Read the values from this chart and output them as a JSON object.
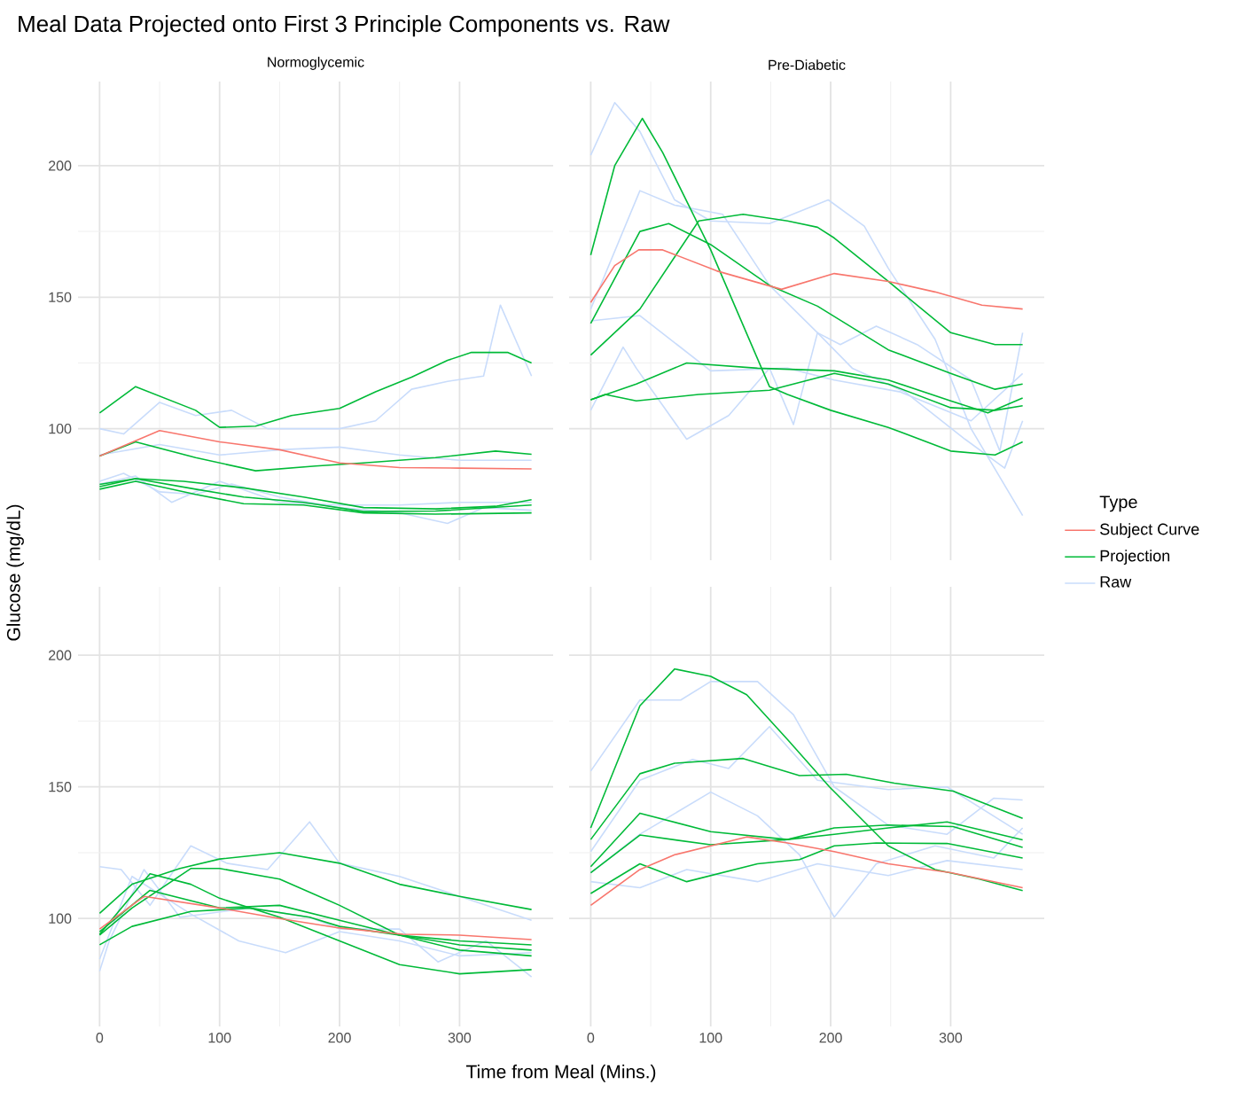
{
  "chart_data": [
    {
      "type": "line",
      "title": "Meal Data Projected onto First 3 Principle Components vs. Raw",
      "subtitle": "Normoglycemic",
      "ylabel": "Glucose (mg/dL)",
      "xlim": [
        -18,
        378
      ],
      "xticks": [
        0,
        100,
        200,
        300
      ],
      "ylim": [
        50,
        232
      ],
      "yticks": [
        100,
        150,
        200
      ],
      "grid": true,
      "tick_labels": "y",
      "series": [
        {
          "color": "#f8766d",
          "x": [
            0,
            50,
            100,
            150,
            200,
            250,
            300,
            360
          ],
          "values": [
            89.6,
            99.3,
            95,
            92,
            87,
            85.2,
            85,
            84.7
          ]
        },
        {
          "color": "#00ba38",
          "x": [
            0,
            30,
            80,
            100,
            130,
            160,
            200,
            230,
            260,
            290,
            310,
            340,
            360
          ],
          "values": [
            106,
            116,
            107,
            100.5,
            101,
            105,
            107.7,
            114,
            119.6,
            126,
            129,
            129,
            125
          ]
        },
        {
          "color": "#00ba38",
          "x": [
            0,
            30,
            80,
            130,
            180,
            220,
            280,
            330,
            360
          ],
          "values": [
            89.6,
            95,
            89,
            84,
            85.8,
            87,
            89,
            91.5,
            90.3
          ]
        },
        {
          "color": "#00ba38",
          "x": [
            0,
            30,
            70,
            120,
            170,
            220,
            280,
            330,
            360
          ],
          "values": [
            78.8,
            81,
            80,
            77.5,
            74,
            70,
            69.5,
            70.5,
            73
          ]
        },
        {
          "color": "#00ba38",
          "x": [
            0,
            30,
            80,
            120,
            170,
            220,
            280,
            360
          ],
          "values": [
            78,
            81,
            77,
            74,
            72,
            68.5,
            68.7,
            71
          ]
        },
        {
          "color": "#00ba38",
          "x": [
            0,
            30,
            80,
            120,
            170,
            220,
            280,
            360
          ],
          "values": [
            77,
            80,
            75,
            71.5,
            71,
            68,
            67.5,
            68
          ]
        },
        {
          "color": "#c9dcfb",
          "x": [
            0,
            20,
            50,
            80,
            110,
            140,
            200,
            230,
            260,
            290,
            320,
            334,
            360
          ],
          "values": [
            100,
            98,
            110,
            105,
            107,
            100,
            100,
            103,
            115,
            118,
            120,
            147,
            120
          ]
        },
        {
          "color": "#c9dcfb",
          "x": [
            0,
            50,
            100,
            150,
            200,
            250,
            300,
            360
          ],
          "values": [
            90,
            94,
            90,
            92,
            93,
            90,
            88,
            88
          ]
        },
        {
          "color": "#c9dcfb",
          "x": [
            0,
            20,
            50,
            80,
            110,
            150,
            200,
            250,
            290,
            320,
            360
          ],
          "values": [
            80,
            83,
            76,
            75,
            79,
            74,
            70,
            68,
            64,
            70,
            69
          ]
        },
        {
          "color": "#c9dcfb",
          "x": [
            0,
            30,
            60,
            100,
            150,
            200,
            250,
            300,
            360
          ],
          "values": [
            79,
            82,
            72,
            80,
            72,
            71,
            71,
            72,
            72
          ]
        }
      ]
    },
    {
      "type": "line",
      "subtitle": "Pre-Diabetic",
      "legend_title": "Type",
      "legend": "right",
      "xlim": [
        -18,
        378
      ],
      "xticks": [
        0,
        100,
        200,
        300
      ],
      "ylim": [
        50,
        232
      ],
      "yticks": [
        100,
        150,
        200
      ],
      "grid": true,
      "tick_labels": false,
      "series": [
        {
          "name": "Subject Curve",
          "color": "#f8766d",
          "x": [
            0,
            20,
            40,
            60,
            105,
            159,
            203,
            248,
            287,
            326,
            360
          ],
          "values": [
            148,
            162,
            168,
            168,
            160,
            153,
            159,
            156,
            152,
            147,
            145.5
          ]
        },
        {
          "name": "Projection",
          "color": "#00ba38",
          "x": [
            0,
            20,
            43,
            60,
            100,
            149,
            164,
            200,
            248,
            300,
            337,
            360
          ],
          "values": [
            166,
            200,
            218,
            205,
            168,
            116,
            113,
            107,
            100.5,
            91.5,
            90,
            95
          ]
        },
        {
          "color": "#00ba38",
          "x": [
            0,
            41,
            65,
            100,
            149,
            189,
            248,
            300,
            337,
            360
          ],
          "values": [
            140,
            175,
            178,
            170,
            154.5,
            146.6,
            130,
            121,
            115,
            117
          ]
        },
        {
          "color": "#00ba38",
          "x": [
            0,
            41,
            90,
            127,
            164,
            189,
            203,
            248,
            300,
            337,
            360
          ],
          "values": [
            128,
            145.5,
            179,
            181.5,
            179,
            176.6,
            172.5,
            156,
            136.5,
            132,
            132
          ]
        },
        {
          "color": "#00ba38",
          "x": [
            0,
            38,
            80,
            139,
            203,
            248,
            300,
            331,
            360
          ],
          "values": [
            111,
            117,
            125,
            123,
            122,
            118.5,
            110.6,
            106,
            111.7
          ]
        },
        {
          "color": "#00ba38",
          "x": [
            0,
            12,
            38,
            90,
            149,
            203,
            248,
            300,
            337,
            360
          ],
          "values": [
            111,
            113,
            110.6,
            113,
            114.6,
            121,
            117,
            108,
            107,
            108.7
          ]
        },
        {
          "name": "Raw",
          "color": "#c9dcfb",
          "x": [
            0,
            20,
            41,
            70,
            100,
            149,
            198,
            228,
            248,
            287,
            317,
            360
          ],
          "values": [
            204,
            224,
            213,
            187,
            179,
            178,
            187,
            177,
            161,
            134,
            100,
            67
          ]
        },
        {
          "color": "#c9dcfb",
          "x": [
            0,
            41,
            70,
            110,
            149,
            189,
            208,
            238,
            272,
            317,
            341,
            360
          ],
          "values": [
            145.5,
            190.5,
            185,
            181.5,
            154.5,
            136.5,
            132,
            139,
            132,
            118.5,
            91.5,
            136.5
          ]
        },
        {
          "color": "#c9dcfb",
          "x": [
            0,
            27,
            38,
            80,
            115,
            149,
            169,
            189,
            218,
            262,
            312,
            345,
            360
          ],
          "values": [
            107,
            131,
            123,
            96,
            105,
            123,
            101.6,
            136.5,
            123,
            114,
            96,
            85,
            103
          ]
        },
        {
          "color": "#c9dcfb",
          "x": [
            0,
            41,
            100,
            164,
            203,
            258,
            317,
            360
          ],
          "values": [
            141,
            143,
            122,
            123,
            118.5,
            114,
            103,
            121
          ]
        }
      ]
    },
    {
      "type": "line",
      "xlabel": "Time from Meal (Mins.)",
      "xlim": [
        -18,
        378
      ],
      "xticks": [
        0,
        100,
        200,
        300
      ],
      "ylim": [
        59,
        226
      ],
      "yticks": [
        100,
        150,
        200
      ],
      "grid": true,
      "series": [
        {
          "color": "#f8766d",
          "x": [
            0,
            37,
            100,
            150,
            200,
            253,
            300,
            360
          ],
          "values": [
            96,
            108.4,
            104,
            100,
            96.4,
            94,
            93.7,
            92
          ]
        },
        {
          "color": "#00ba38",
          "x": [
            0,
            27,
            67,
            100,
            150,
            200,
            250,
            300,
            360
          ],
          "values": [
            102,
            113,
            119,
            122.6,
            125,
            121,
            113,
            108.4,
            103.4
          ]
        },
        {
          "color": "#00ba38",
          "x": [
            0,
            27,
            76,
            100,
            150,
            200,
            250,
            300,
            360
          ],
          "values": [
            93.7,
            104,
            119,
            119,
            115,
            105,
            93.7,
            90,
            88
          ]
        },
        {
          "color": "#00ba38",
          "x": [
            0,
            42,
            76,
            100,
            150,
            200,
            250,
            300,
            360
          ],
          "values": [
            94,
            117,
            113,
            107.7,
            100.5,
            91.5,
            82.5,
            79,
            80.6
          ]
        },
        {
          "color": "#00ba38",
          "x": [
            0,
            42,
            100,
            150,
            200,
            250,
            300,
            360
          ],
          "values": [
            95,
            110.7,
            104,
            105,
            99.3,
            93.7,
            88,
            85.8
          ]
        },
        {
          "color": "#00ba38",
          "x": [
            0,
            27,
            76,
            125,
            175,
            200,
            250,
            300,
            360
          ],
          "values": [
            90,
            97,
            102.7,
            104,
            100.5,
            97,
            93.7,
            91.5,
            90
          ]
        },
        {
          "color": "#c9dcfb",
          "x": [
            0,
            18,
            42,
            76,
            106,
            140,
            175,
            200,
            250,
            300,
            360
          ],
          "values": [
            119.7,
            118.6,
            105,
            127.6,
            121,
            118.6,
            136.7,
            121,
            116,
            108.4,
            99.3
          ]
        },
        {
          "color": "#c9dcfb",
          "x": [
            0,
            8,
            37,
            67,
            125,
            175,
            200,
            250,
            282,
            322,
            360
          ],
          "values": [
            80,
            91.5,
            118.6,
            100.5,
            104,
            100.5,
            96,
            96,
            83.5,
            91.5,
            77.8
          ]
        },
        {
          "color": "#c9dcfb",
          "x": [
            0,
            27,
            76,
            116,
            155,
            200,
            250,
            300,
            360
          ],
          "values": [
            84.6,
            116,
            101.7,
            91.5,
            87,
            95,
            91.5,
            85.8,
            87
          ]
        }
      ]
    },
    {
      "type": "line",
      "xlim": [
        -18,
        378
      ],
      "xticks": [
        0,
        100,
        200,
        300
      ],
      "ylim": [
        59,
        226
      ],
      "yticks": [
        100,
        150,
        200
      ],
      "grid": true,
      "tick_labels": "x",
      "series": [
        {
          "color": "#f8766d",
          "x": [
            0,
            41,
            70,
            130,
            164,
            203,
            248,
            300,
            360
          ],
          "values": [
            105,
            118.6,
            124.2,
            131,
            128.7,
            125.4,
            120.8,
            117.4,
            111.7
          ]
        },
        {
          "color": "#00ba38",
          "x": [
            0,
            41,
            70,
            100,
            130,
            164,
            199,
            248,
            287,
            324,
            360
          ],
          "values": [
            134.4,
            180.8,
            194.8,
            192,
            185,
            168,
            150,
            127.6,
            118.6,
            115,
            110.6
          ]
        },
        {
          "color": "#00ba38",
          "x": [
            0,
            41,
            70,
            127,
            174,
            213,
            253,
            302,
            360
          ],
          "values": [
            130,
            155,
            159,
            160.8,
            154.3,
            154.8,
            151.4,
            148.4,
            138
          ]
        },
        {
          "color": "#00ba38",
          "x": [
            0,
            41,
            100,
            164,
            203,
            248,
            302,
            360
          ],
          "values": [
            119.7,
            140,
            133,
            130,
            134.4,
            135.5,
            134.9,
            127
          ]
        },
        {
          "color": "#00ba38",
          "x": [
            0,
            41,
            100,
            164,
            203,
            248,
            297,
            360
          ],
          "values": [
            117.4,
            131.7,
            128,
            130,
            132,
            134.4,
            136.7,
            129.9
          ]
        },
        {
          "color": "#00ba38",
          "x": [
            0,
            41,
            80,
            139,
            174,
            203,
            238,
            297,
            360
          ],
          "values": [
            109.5,
            120.8,
            114,
            120.8,
            122.4,
            127.6,
            128.7,
            128.5,
            123
          ]
        },
        {
          "color": "#c9dcfb",
          "x": [
            0,
            41,
            75,
            100,
            139,
            169,
            203,
            248,
            297,
            336,
            360
          ],
          "values": [
            156,
            183,
            183,
            190,
            190,
            177.4,
            150,
            135.5,
            132,
            145.7,
            145
          ]
        },
        {
          "color": "#c9dcfb",
          "x": [
            0,
            41,
            85,
            115,
            149,
            189,
            248,
            297,
            360
          ],
          "values": [
            125.4,
            152.5,
            160.4,
            157,
            172.9,
            152.5,
            149,
            150,
            132
          ]
        },
        {
          "color": "#c9dcfb",
          "x": [
            0,
            41,
            100,
            139,
            174,
            203,
            238,
            287,
            336,
            360
          ],
          "values": [
            117.4,
            132,
            148,
            139,
            124.2,
            100.5,
            120.8,
            127.6,
            123,
            134.4
          ]
        },
        {
          "color": "#c9dcfb",
          "x": [
            0,
            41,
            80,
            139,
            189,
            248,
            297,
            360
          ],
          "values": [
            114,
            111.7,
            118.6,
            114,
            120.8,
            116.3,
            122,
            118.6
          ]
        }
      ]
    }
  ]
}
